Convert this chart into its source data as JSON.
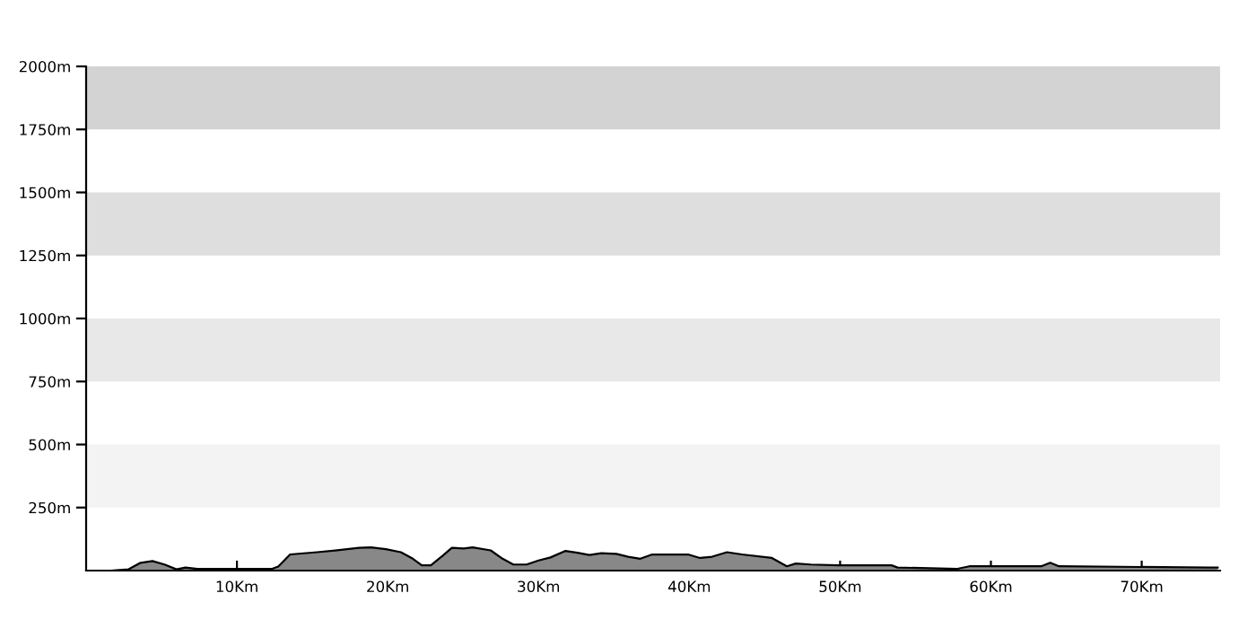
{
  "chart_data": {
    "type": "area",
    "x": [
      1.63,
      2.82,
      3.61,
      4.4,
      5.2,
      5.99,
      6.59,
      7.38,
      8.57,
      10.16,
      12.34,
      12.74,
      13.53,
      15.32,
      16.51,
      18.1,
      18.89,
      19.88,
      20.87,
      21.67,
      22.26,
      22.86,
      23.65,
      24.25,
      25.04,
      25.63,
      26.83,
      27.62,
      28.33,
      29.21,
      30.0,
      30.79,
      31.79,
      32.58,
      33.37,
      34.17,
      35.16,
      35.95,
      36.75,
      37.54,
      39.92,
      40.71,
      41.51,
      42.5,
      43.49,
      45.48,
      46.47,
      47.06,
      48.06,
      49.84,
      53.41,
      53.81,
      57.78,
      58.57,
      63.33,
      63.93,
      64.52,
      74.44,
      75.04
    ],
    "series": [
      {
        "color": "#888888",
        "values": [
          0,
          5,
          31,
          38,
          24,
          5,
          12,
          7,
          7,
          7,
          7,
          16,
          64,
          73,
          80,
          90,
          92,
          85,
          73,
          47,
          21,
          21,
          59,
          90,
          88,
          92,
          80,
          47,
          24,
          24,
          40,
          52,
          78,
          71,
          62,
          69,
          66,
          55,
          47,
          64,
          64,
          50,
          55,
          73,
          64,
          50,
          17,
          28,
          24,
          21,
          21,
          12,
          7,
          17,
          17,
          31,
          17,
          12,
          12
        ]
      }
    ],
    "xlim": [
      0,
      75.2
    ],
    "ylim": [
      0,
      2000
    ],
    "xticks": [
      {
        "value": 10,
        "label": "10Km"
      },
      {
        "value": 20,
        "label": "20Km"
      },
      {
        "value": 30,
        "label": "30Km"
      },
      {
        "value": 40,
        "label": "40Km"
      },
      {
        "value": 50,
        "label": "50Km"
      },
      {
        "value": 60,
        "label": "60Km"
      },
      {
        "value": 70,
        "label": "70Km"
      }
    ],
    "yticks": [
      {
        "value": 250,
        "label": "250m"
      },
      {
        "value": 500,
        "label": "500m"
      },
      {
        "value": 750,
        "label": "750m"
      },
      {
        "value": 1000,
        "label": "1000m"
      },
      {
        "value": 1250,
        "label": "1250m"
      },
      {
        "value": 1500,
        "label": "1500m"
      },
      {
        "value": 1750,
        "label": "1750m"
      },
      {
        "value": 2000,
        "label": "2000m"
      }
    ],
    "bands": [
      {
        "axis": "y",
        "from": 250,
        "to": 500,
        "color": "#f3f3f3"
      },
      {
        "axis": "y",
        "from": 750,
        "to": 1000,
        "color": "#e8e8e8"
      },
      {
        "axis": "y",
        "from": 1250,
        "to": 1500,
        "color": "#dedede"
      },
      {
        "axis": "y",
        "from": 1750,
        "to": 2000,
        "color": "#d3d3d3"
      }
    ]
  }
}
